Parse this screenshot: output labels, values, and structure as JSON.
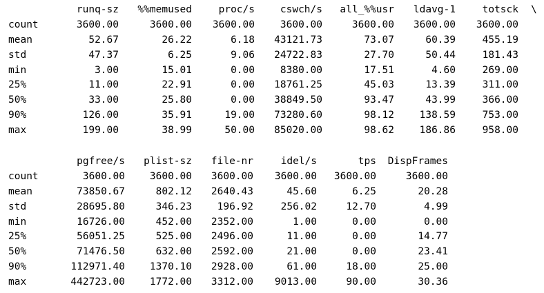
{
  "output": {
    "blocks": [
      {
        "continuation": "\\",
        "columns": [
          "runq-sz",
          "%%memused",
          "proc/s",
          "cswch/s",
          "all_%%usr",
          "ldavg-1",
          "totsck"
        ],
        "rows": [
          {
            "label": "count",
            "values": [
              "3600.00",
              "3600.00",
              "3600.00",
              "3600.00",
              "3600.00",
              "3600.00",
              "3600.00"
            ]
          },
          {
            "label": "mean",
            "values": [
              "52.67",
              "26.22",
              "6.18",
              "43121.73",
              "73.07",
              "60.39",
              "455.19"
            ]
          },
          {
            "label": "std",
            "values": [
              "47.37",
              "6.25",
              "9.06",
              "24722.83",
              "27.70",
              "50.44",
              "181.43"
            ]
          },
          {
            "label": "min",
            "values": [
              "3.00",
              "15.01",
              "0.00",
              "8380.00",
              "17.51",
              "4.60",
              "269.00"
            ]
          },
          {
            "label": "25%",
            "values": [
              "11.00",
              "22.91",
              "0.00",
              "18761.25",
              "45.03",
              "13.39",
              "311.00"
            ]
          },
          {
            "label": "50%",
            "values": [
              "33.00",
              "25.80",
              "0.00",
              "38849.50",
              "93.47",
              "43.99",
              "366.00"
            ]
          },
          {
            "label": "90%",
            "values": [
              "126.00",
              "35.91",
              "19.00",
              "73280.60",
              "98.12",
              "138.59",
              "753.00"
            ]
          },
          {
            "label": "max",
            "values": [
              "199.00",
              "38.99",
              "50.00",
              "85020.00",
              "98.62",
              "186.86",
              "958.00"
            ]
          }
        ]
      },
      {
        "continuation": "",
        "columns": [
          "pgfree/s",
          "plist-sz",
          "file-nr",
          "idel/s",
          "tps",
          "DispFrames"
        ],
        "rows": [
          {
            "label": "count",
            "values": [
              "3600.00",
              "3600.00",
              "3600.00",
              "3600.00",
              "3600.00",
              "3600.00"
            ]
          },
          {
            "label": "mean",
            "values": [
              "73850.67",
              "802.12",
              "2640.43",
              "45.60",
              "6.25",
              "20.28"
            ]
          },
          {
            "label": "std",
            "values": [
              "28695.80",
              "346.23",
              "196.92",
              "256.02",
              "12.70",
              "4.99"
            ]
          },
          {
            "label": "min",
            "values": [
              "16726.00",
              "452.00",
              "2352.00",
              "1.00",
              "0.00",
              "0.00"
            ]
          },
          {
            "label": "25%",
            "values": [
              "56051.25",
              "525.00",
              "2496.00",
              "11.00",
              "0.00",
              "14.77"
            ]
          },
          {
            "label": "50%",
            "values": [
              "71476.50",
              "632.00",
              "2592.00",
              "21.00",
              "0.00",
              "23.41"
            ]
          },
          {
            "label": "90%",
            "values": [
              "112971.40",
              "1370.10",
              "2928.00",
              "61.00",
              "18.00",
              "25.00"
            ]
          },
          {
            "label": "max",
            "values": [
              "442723.00",
              "1772.00",
              "3312.00",
              "9013.00",
              "90.00",
              "30.36"
            ]
          }
        ]
      }
    ]
  }
}
